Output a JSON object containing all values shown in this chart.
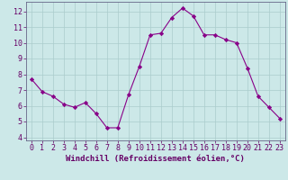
{
  "x": [
    0,
    1,
    2,
    3,
    4,
    5,
    6,
    7,
    8,
    9,
    10,
    11,
    12,
    13,
    14,
    15,
    16,
    17,
    18,
    19,
    20,
    21,
    22,
    23
  ],
  "y": [
    7.7,
    6.9,
    6.6,
    6.1,
    5.9,
    6.2,
    5.5,
    4.6,
    4.6,
    6.7,
    8.5,
    10.5,
    10.6,
    11.6,
    12.2,
    11.7,
    10.5,
    10.5,
    10.2,
    10.0,
    8.4,
    6.6,
    5.9,
    5.2
  ],
  "line_color": "#880088",
  "marker": "D",
  "marker_size": 2.2,
  "bg_color": "#cce8e8",
  "grid_color": "#aacccc",
  "xlabel": "Windchill (Refroidissement éolien,°C)",
  "xlim": [
    -0.5,
    23.5
  ],
  "ylim": [
    3.8,
    12.6
  ],
  "yticks": [
    4,
    5,
    6,
    7,
    8,
    9,
    10,
    11,
    12
  ],
  "xticks": [
    0,
    1,
    2,
    3,
    4,
    5,
    6,
    7,
    8,
    9,
    10,
    11,
    12,
    13,
    14,
    15,
    16,
    17,
    18,
    19,
    20,
    21,
    22,
    23
  ],
  "xlabel_fontsize": 6.5,
  "tick_fontsize": 6.0,
  "spine_color": "#666688",
  "text_color": "#660066"
}
